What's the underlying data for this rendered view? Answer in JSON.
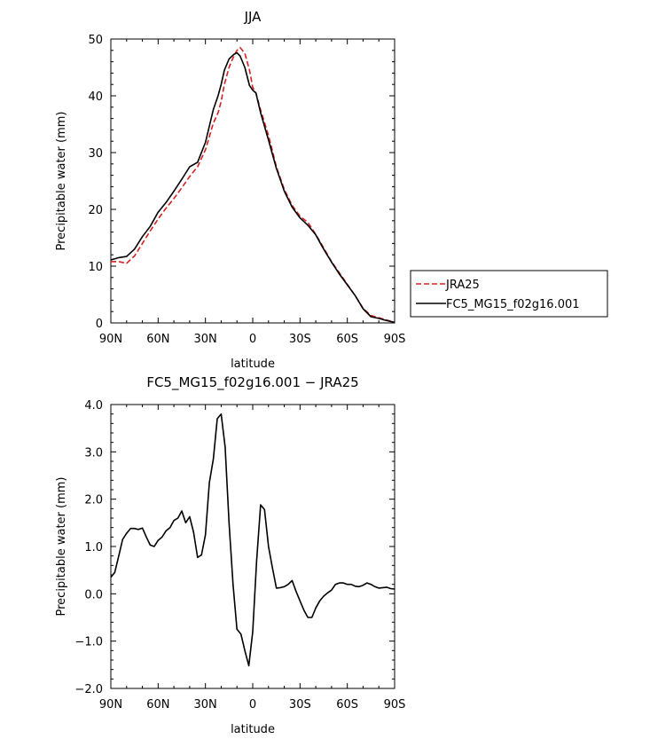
{
  "chart_data": [
    {
      "type": "line",
      "title": "JJA",
      "xlabel": "latitude",
      "ylabel": "Precipitable water (mm)",
      "xlim": [
        90,
        -90
      ],
      "ylim": [
        0,
        50
      ],
      "xticks": [
        90,
        60,
        30,
        0,
        -30,
        -60,
        -90
      ],
      "xtick_labels": [
        "90N",
        "60N",
        "30N",
        "0",
        "30S",
        "60S",
        "90S"
      ],
      "yticks": [
        0,
        10,
        20,
        30,
        40,
        50
      ],
      "ytick_labels": [
        "0",
        "10",
        "20",
        "30",
        "40",
        "50"
      ],
      "legend": "right",
      "series": [
        {
          "name": "JRA25",
          "color": "#d62020",
          "style": "dashed",
          "x": [
            90,
            85,
            80,
            75,
            70,
            65,
            60,
            55,
            50,
            45,
            40,
            35,
            30,
            25,
            22,
            20,
            18,
            15,
            12,
            10,
            8,
            5,
            2,
            0,
            -2,
            -5,
            -10,
            -15,
            -20,
            -25,
            -30,
            -35,
            -40,
            -45,
            -50,
            -55,
            -60,
            -65,
            -70,
            -75,
            -80,
            -85,
            -90
          ],
          "y": [
            10.8,
            10.8,
            10.5,
            11.8,
            14.0,
            16.2,
            18.3,
            20.2,
            21.9,
            23.8,
            25.8,
            27.5,
            30.5,
            35.2,
            37.0,
            39.0,
            42.0,
            45.0,
            47.0,
            48.0,
            48.5,
            47.5,
            44.5,
            41.5,
            40.5,
            37.5,
            33.0,
            27.5,
            23.5,
            20.7,
            18.8,
            17.7,
            15.6,
            13.2,
            10.8,
            8.8,
            6.8,
            4.8,
            2.6,
            1.3,
            0.9,
            0.5,
            0.1
          ]
        },
        {
          "name": "FC5_MG15_f02g16.001",
          "color": "#000000",
          "style": "solid",
          "x": [
            90,
            85,
            80,
            75,
            70,
            65,
            60,
            55,
            50,
            45,
            40,
            35,
            30,
            25,
            22,
            20,
            18,
            15,
            12,
            10,
            8,
            5,
            2,
            0,
            -2,
            -5,
            -10,
            -15,
            -20,
            -25,
            -30,
            -35,
            -40,
            -45,
            -50,
            -55,
            -60,
            -65,
            -70,
            -75,
            -80,
            -85,
            -90
          ],
          "y": [
            11.1,
            11.5,
            11.7,
            13.0,
            15.2,
            17.0,
            19.5,
            21.2,
            23.2,
            25.3,
            27.5,
            28.3,
            31.8,
            37.6,
            40.0,
            42.0,
            44.5,
            46.5,
            47.3,
            47.6,
            47.0,
            45.0,
            41.8,
            41.0,
            40.5,
            37.0,
            32.2,
            27.2,
            23.2,
            20.4,
            18.5,
            17.2,
            15.5,
            13.0,
            10.7,
            8.6,
            6.7,
            4.8,
            2.5,
            1.1,
            0.8,
            0.4,
            0.1
          ]
        }
      ]
    },
    {
      "type": "line",
      "title": "FC5_MG15_f02g16.001 − JRA25",
      "xlabel": "latitude",
      "ylabel": "Precipitable water (mm)",
      "xlim": [
        90,
        -90
      ],
      "ylim": [
        -2.0,
        4.0
      ],
      "xticks": [
        90,
        60,
        30,
        0,
        -30,
        -60,
        -90
      ],
      "xtick_labels": [
        "90N",
        "60N",
        "30N",
        "0",
        "30S",
        "60S",
        "90S"
      ],
      "yticks": [
        -2.0,
        -1.0,
        0.0,
        1.0,
        2.0,
        3.0,
        4.0
      ],
      "ytick_labels": [
        "−2.0",
        "−1.0",
        "0.0",
        "1.0",
        "2.0",
        "3.0",
        "4.0"
      ],
      "series": [
        {
          "color": "#000000",
          "style": "solid",
          "x": [
            90,
            87.5,
            85,
            82.5,
            80,
            77.5,
            75,
            72.5,
            70,
            67.5,
            65,
            62.5,
            60,
            57.5,
            55,
            52.5,
            50,
            47.5,
            45,
            42.5,
            40,
            37.5,
            35,
            32.5,
            30,
            27.5,
            25,
            22.5,
            20,
            17.5,
            15,
            12.5,
            10,
            7.5,
            5,
            2.5,
            0,
            -2.5,
            -5,
            -7.5,
            -10,
            -12.5,
            -15,
            -17.5,
            -20,
            -22.5,
            -25,
            -27.5,
            -30,
            -32.5,
            -35,
            -37.5,
            -40,
            -42.5,
            -45,
            -47.5,
            -50,
            -52.5,
            -55,
            -57.5,
            -60,
            -62.5,
            -65,
            -67.5,
            -70,
            -72.5,
            -75,
            -77.5,
            -80,
            -82.5,
            -85,
            -87.5,
            -90
          ],
          "y": [
            0.35,
            0.45,
            0.8,
            1.15,
            1.28,
            1.38,
            1.38,
            1.36,
            1.39,
            1.2,
            1.03,
            1.0,
            1.13,
            1.2,
            1.33,
            1.4,
            1.55,
            1.6,
            1.75,
            1.5,
            1.63,
            1.3,
            0.77,
            0.82,
            1.25,
            2.35,
            2.85,
            3.7,
            3.8,
            3.1,
            1.5,
            0.2,
            -0.75,
            -0.85,
            -1.2,
            -1.52,
            -0.8,
            0.7,
            1.88,
            1.78,
            1.0,
            0.55,
            0.12,
            0.13,
            0.15,
            0.2,
            0.28,
            0.05,
            -0.15,
            -0.35,
            -0.5,
            -0.5,
            -0.3,
            -0.15,
            -0.05,
            0.02,
            0.08,
            0.2,
            0.23,
            0.23,
            0.2,
            0.2,
            0.16,
            0.15,
            0.18,
            0.23,
            0.2,
            0.15,
            0.12,
            0.13,
            0.14,
            0.11,
            0.1
          ]
        }
      ]
    }
  ]
}
